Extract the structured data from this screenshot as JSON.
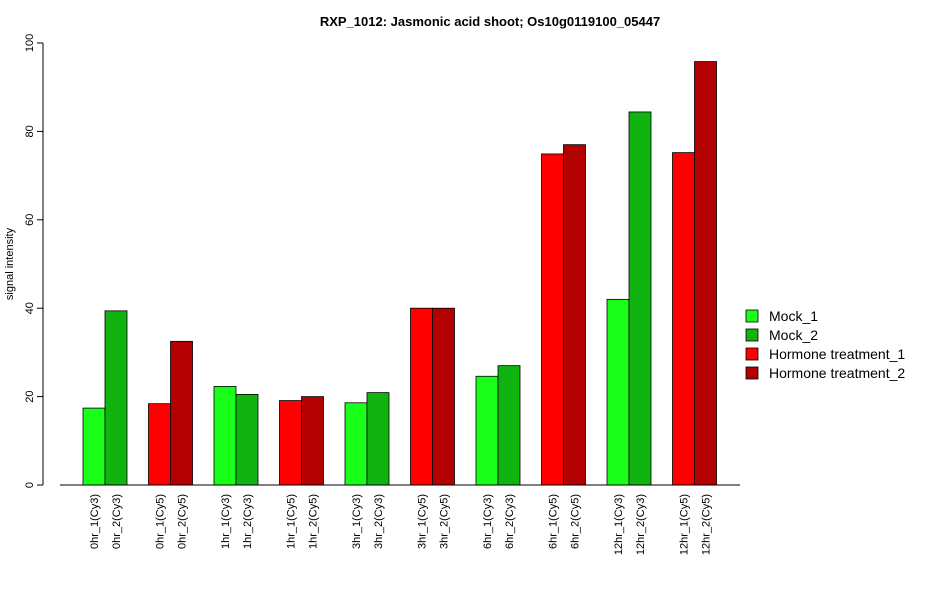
{
  "chart_data": {
    "type": "bar",
    "title": "RXP_1012: Jasmonic acid shoot; Os10g0119100_05447",
    "ylabel": "signal intensity",
    "xlabel": "",
    "ylim": [
      0,
      100
    ],
    "yticks": [
      0,
      20,
      40,
      60,
      80,
      100
    ],
    "colors": {
      "Mock_1": "#1aff1a",
      "Mock_2": "#10b310",
      "Hormone treatment_1": "#ff0000",
      "Hormone treatment_2": "#b30000"
    },
    "legend": {
      "placement": "right",
      "entries": [
        "Mock_1",
        "Mock_2",
        "Hormone treatment_1",
        "Hormone treatment_2"
      ]
    },
    "groups": [
      {
        "bars": [
          {
            "label": "0hr_1(Cy3)",
            "value": 17.4,
            "series": "Mock_1"
          },
          {
            "label": "0hr_2(Cy3)",
            "value": 39.4,
            "series": "Mock_2"
          }
        ]
      },
      {
        "bars": [
          {
            "label": "0hr_1(Cy5)",
            "value": 18.4,
            "series": "Hormone treatment_1"
          },
          {
            "label": "0hr_2(Cy5)",
            "value": 32.5,
            "series": "Hormone treatment_2"
          }
        ]
      },
      {
        "bars": [
          {
            "label": "1hr_1(Cy3)",
            "value": 22.3,
            "series": "Mock_1"
          },
          {
            "label": "1hr_2(Cy3)",
            "value": 20.5,
            "series": "Mock_2"
          }
        ]
      },
      {
        "bars": [
          {
            "label": "1hr_1(Cy5)",
            "value": 19.1,
            "series": "Hormone treatment_1"
          },
          {
            "label": "1hr_2(Cy5)",
            "value": 20.0,
            "series": "Hormone treatment_2"
          }
        ]
      },
      {
        "bars": [
          {
            "label": "3hr_1(Cy3)",
            "value": 18.6,
            "series": "Mock_1"
          },
          {
            "label": "3hr_2(Cy3)",
            "value": 20.9,
            "series": "Mock_2"
          }
        ]
      },
      {
        "bars": [
          {
            "label": "3hr_1(Cy5)",
            "value": 40.0,
            "series": "Hormone treatment_1"
          },
          {
            "label": "3hr_2(Cy5)",
            "value": 40.0,
            "series": "Hormone treatment_2"
          }
        ]
      },
      {
        "bars": [
          {
            "label": "6hr_1(Cy3)",
            "value": 24.6,
            "series": "Mock_1"
          },
          {
            "label": "6hr_2(Cy3)",
            "value": 27.0,
            "series": "Mock_2"
          }
        ]
      },
      {
        "bars": [
          {
            "label": "6hr_1(Cy5)",
            "value": 74.9,
            "series": "Hormone treatment_1"
          },
          {
            "label": "6hr_2(Cy5)",
            "value": 77.0,
            "series": "Hormone treatment_2"
          }
        ]
      },
      {
        "bars": [
          {
            "label": "12hr_1(Cy3)",
            "value": 42.0,
            "series": "Mock_1"
          },
          {
            "label": "12hr_2(Cy3)",
            "value": 84.4,
            "series": "Mock_2"
          }
        ]
      },
      {
        "bars": [
          {
            "label": "12hr_1(Cy5)",
            "value": 75.2,
            "series": "Hormone treatment_1"
          },
          {
            "label": "12hr_2(Cy5)",
            "value": 95.8,
            "series": "Hormone treatment_2"
          }
        ]
      }
    ]
  }
}
